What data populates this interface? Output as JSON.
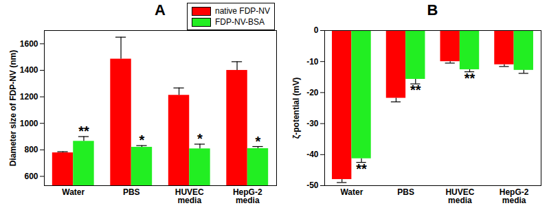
{
  "chart_data": [
    {
      "type": "bar",
      "title": "A",
      "y_label": "Diameter size of FDP-NV (nm)",
      "categories": [
        "Water",
        "PBS",
        "HUVEC media",
        "HepG-2 media"
      ],
      "series": [
        {
          "name": "native FDP-NV",
          "color": "#ff0000",
          "values": [
            778,
            1485,
            1212,
            1400
          ],
          "errors": [
            8,
            165,
            55,
            65
          ],
          "significance": [
            null,
            null,
            null,
            null
          ]
        },
        {
          "name": "FDP-NV-BSA",
          "color": "#22ee22",
          "values": [
            865,
            820,
            808,
            810
          ],
          "errors": [
            35,
            12,
            35,
            15
          ],
          "significance": [
            "**",
            "*",
            "*",
            "*"
          ]
        }
      ],
      "ylim": [
        530,
        1700
      ],
      "yticks": [
        600,
        800,
        1000,
        1200,
        1400,
        1600
      ],
      "legend": "upper right"
    },
    {
      "type": "bar",
      "title": "B",
      "y_label": "ζ-potential (mV)",
      "categories": [
        "Water",
        "PBS",
        "HUVEC media",
        "HepG-2 media"
      ],
      "series": [
        {
          "name": "native FDP-NV",
          "color": "#ff0000",
          "values": [
            -48,
            -21.8,
            -10,
            -11
          ],
          "errors": [
            1,
            1.2,
            0.5,
            0.6
          ],
          "significance": [
            null,
            null,
            null,
            null
          ]
        },
        {
          "name": "FDP-NV-BSA",
          "color": "#22ee22",
          "values": [
            -41.3,
            -15.7,
            -12.6,
            -12.8
          ],
          "errors": [
            1.2,
            1.5,
            0.7,
            1
          ],
          "significance": [
            "**",
            "**",
            "**",
            null
          ]
        }
      ],
      "ylim": [
        -50,
        0
      ],
      "yticks": [
        -50,
        -40,
        -30,
        -20,
        -10,
        0
      ]
    }
  ]
}
